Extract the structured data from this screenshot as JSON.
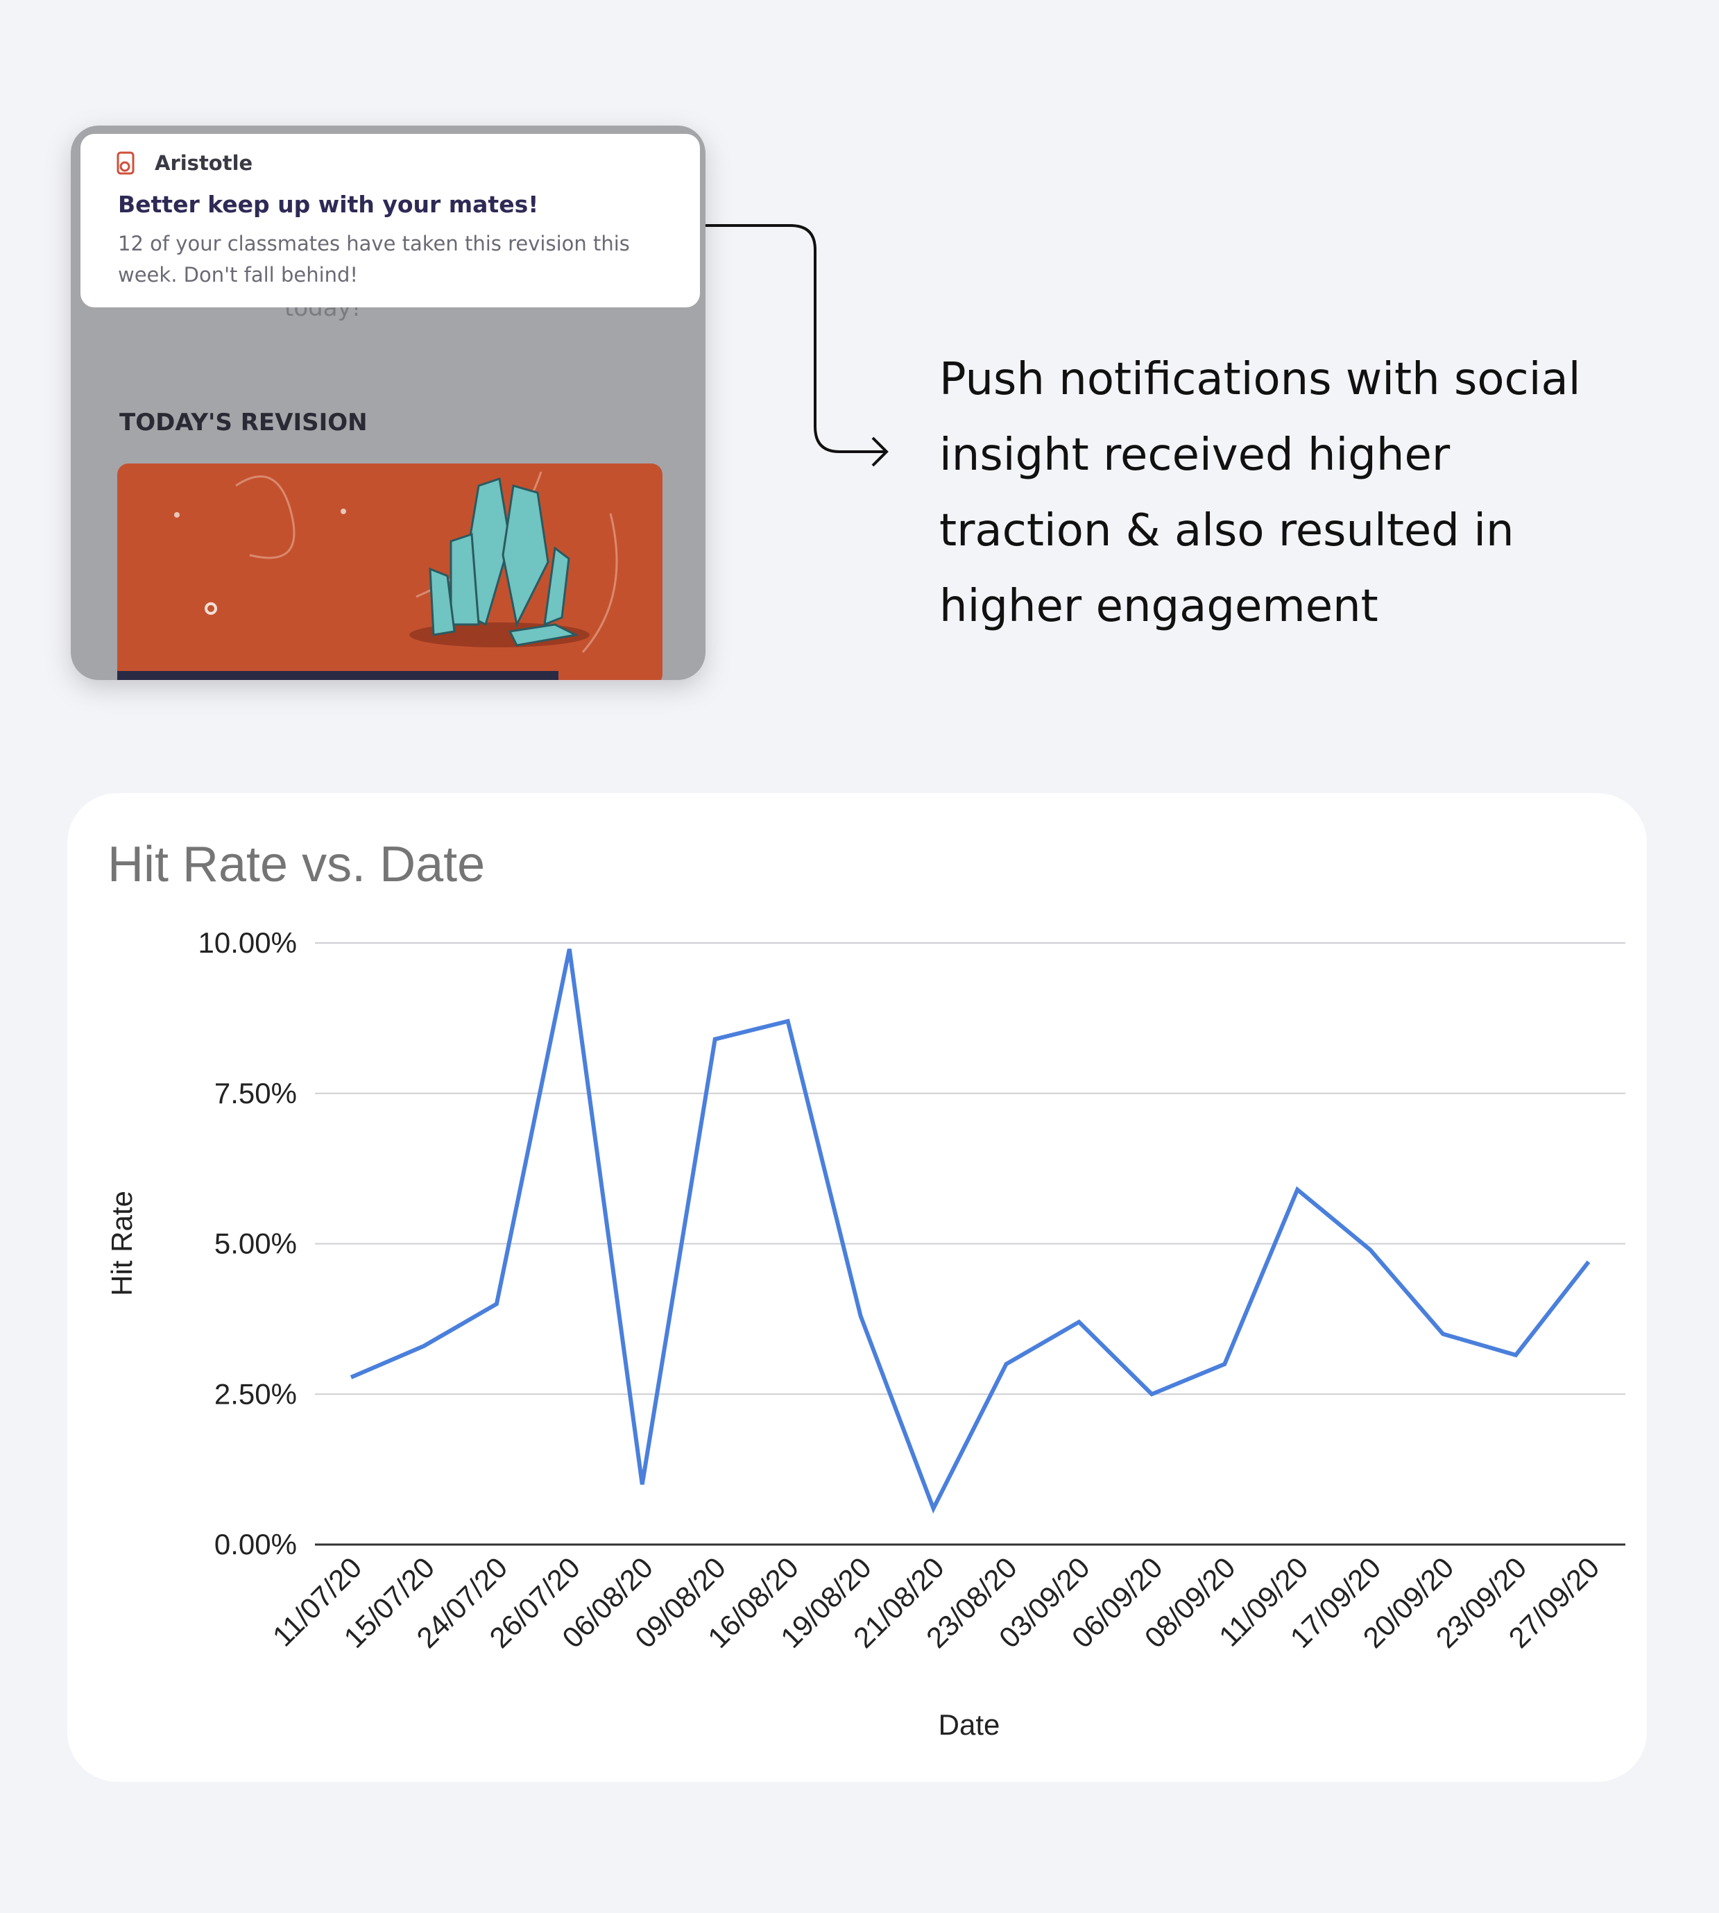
{
  "notification": {
    "app": "Aristotle",
    "title": "Better keep up with your mates!",
    "body_lines": [
      "12 of your classmates have taken this revision this",
      "week. Don't fall behind!"
    ]
  },
  "screen": {
    "partial_text": "today!",
    "section": "TODAY'S REVISION"
  },
  "caption": {
    "lines": [
      "Push notifications with social",
      "insight received higher",
      "traction & also resulted in",
      "higher engagement"
    ]
  },
  "chart_data": {
    "type": "line",
    "title": "Hit Rate vs. Date",
    "x_label": "Date",
    "y_label": "Hit Rate",
    "categories": [
      "11/07/20",
      "15/07/20",
      "24/07/20",
      "26/07/20",
      "06/08/20",
      "09/08/20",
      "16/08/20",
      "19/08/20",
      "21/08/20",
      "23/08/20",
      "03/09/20",
      "06/09/20",
      "08/09/20",
      "11/09/20",
      "17/09/20",
      "20/09/20",
      "23/09/20",
      "27/09/20"
    ],
    "values": [
      2.78,
      3.3,
      4.0,
      9.9,
      1.0,
      8.4,
      8.7,
      3.8,
      0.6,
      3.0,
      3.7,
      2.5,
      3.0,
      5.9,
      4.9,
      3.5,
      3.15,
      4.7
    ],
    "color": "#4a7fdc",
    "ylim": [
      0,
      10
    ],
    "yticks": [
      {
        "value": 0,
        "label": "0.00%"
      },
      {
        "value": 2.5,
        "label": "2.50%"
      },
      {
        "value": 5,
        "label": "5.00%"
      },
      {
        "value": 7.5,
        "label": "7.50%"
      },
      {
        "value": 10,
        "label": "10.00%"
      }
    ],
    "grid": true
  }
}
